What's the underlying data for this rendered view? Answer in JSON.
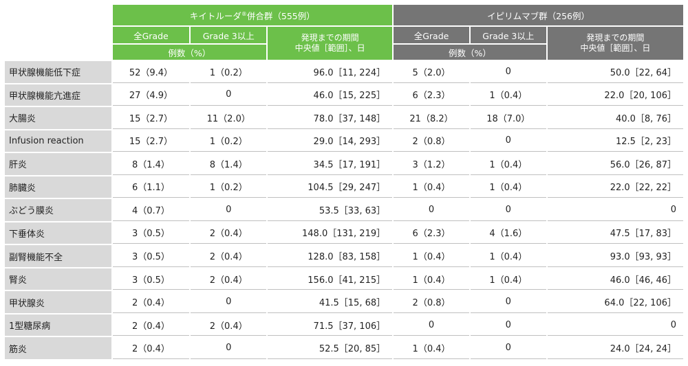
{
  "header": {
    "group1_title_pre": "キイトルーダ",
    "group1_title_sup": "®",
    "group1_title_post": "併合群（555例）",
    "group2_title": "イピリムマブ群（256例）",
    "col_all_grade": "全Grade",
    "col_grade3": "Grade 3以上",
    "col_period_line1": "発現までの期間",
    "col_period_line2": "中央値［範囲］、日",
    "col_count_pct": "例数（%）"
  },
  "rows": [
    {
      "label": "甲状腺機能低下症",
      "k_all": "52（9.4）",
      "k_g3": "1（0.2）",
      "k_period": "96.0［11, 224］",
      "i_all": "5（2.0）",
      "i_g3": "0",
      "i_period": "50.0［22, 64］"
    },
    {
      "label": "甲状腺機能亢進症",
      "k_all": "27（4.9）",
      "k_g3": "0",
      "k_period": "46.0［15, 225］",
      "i_all": "6（2.3）",
      "i_g3": "1（0.4）",
      "i_period": "22.0［20, 106］"
    },
    {
      "label": "大腸炎",
      "k_all": "15（2.7）",
      "k_g3": "11（2.0）",
      "k_period": "78.0［37, 148］",
      "i_all": "21（8.2）",
      "i_g3": "18（7.0）",
      "i_period": "40.0［8, 76］"
    },
    {
      "label": "Infusion reaction",
      "k_all": "15（2.7）",
      "k_g3": "1（0.2）",
      "k_period": "29.0［14, 293］",
      "i_all": "2（0.8）",
      "i_g3": "0",
      "i_period": "12.5［2, 23］"
    },
    {
      "label": "肝炎",
      "k_all": "8（1.4）",
      "k_g3": "8（1.4）",
      "k_period": "34.5［17, 191］",
      "i_all": "3（1.2）",
      "i_g3": "1（0.4）",
      "i_period": "56.0［26, 87］"
    },
    {
      "label": "肺臓炎",
      "k_all": "6（1.1）",
      "k_g3": "1（0.2）",
      "k_period": "104.5［29, 247］",
      "i_all": "1（0.4）",
      "i_g3": "1（0.4）",
      "i_period": "22.0［22, 22］"
    },
    {
      "label": "ぶどう膜炎",
      "k_all": "4（0.7）",
      "k_g3": "0",
      "k_period": "53.5［33, 63］",
      "i_all": "0",
      "i_g3": "0",
      "i_period": "0"
    },
    {
      "label": "下垂体炎",
      "k_all": "3（0.5）",
      "k_g3": "2（0.4）",
      "k_period": "148.0［131, 219］",
      "i_all": "6（2.3）",
      "i_g3": "4（1.6）",
      "i_period": "47.5［17, 83］"
    },
    {
      "label": "副腎機能不全",
      "k_all": "3（0.5）",
      "k_g3": "2（0.4）",
      "k_period": "128.0［83, 158］",
      "i_all": "1（0.4）",
      "i_g3": "1（0.4）",
      "i_period": "93.0［93, 93］"
    },
    {
      "label": "腎炎",
      "k_all": "3（0.5）",
      "k_g3": "2（0.4）",
      "k_period": "156.0［41, 215］",
      "i_all": "1（0.4）",
      "i_g3": "1（0.4）",
      "i_period": "46.0［46, 46］"
    },
    {
      "label": "甲状腺炎",
      "k_all": "2（0.4）",
      "k_g3": "0",
      "k_period": "41.5［15, 68］",
      "i_all": "2（0.8）",
      "i_g3": "0",
      "i_period": "64.0［22, 106］"
    },
    {
      "label": "1型糖尿病",
      "k_all": "2（0.4）",
      "k_g3": "2（0.4）",
      "k_period": "71.5［37, 106］",
      "i_all": "0",
      "i_g3": "0",
      "i_period": "0"
    },
    {
      "label": "筋炎",
      "k_all": "2（0.4）",
      "k_g3": "0",
      "k_period": "52.5［20, 85］",
      "i_all": "1（0.4）",
      "i_g3": "0",
      "i_period": "24.0［24, 24］"
    }
  ],
  "colors": {
    "group1_header": "#6cc04a",
    "group2_header": "#757575",
    "row_label_bg": "#d9d9d9"
  }
}
